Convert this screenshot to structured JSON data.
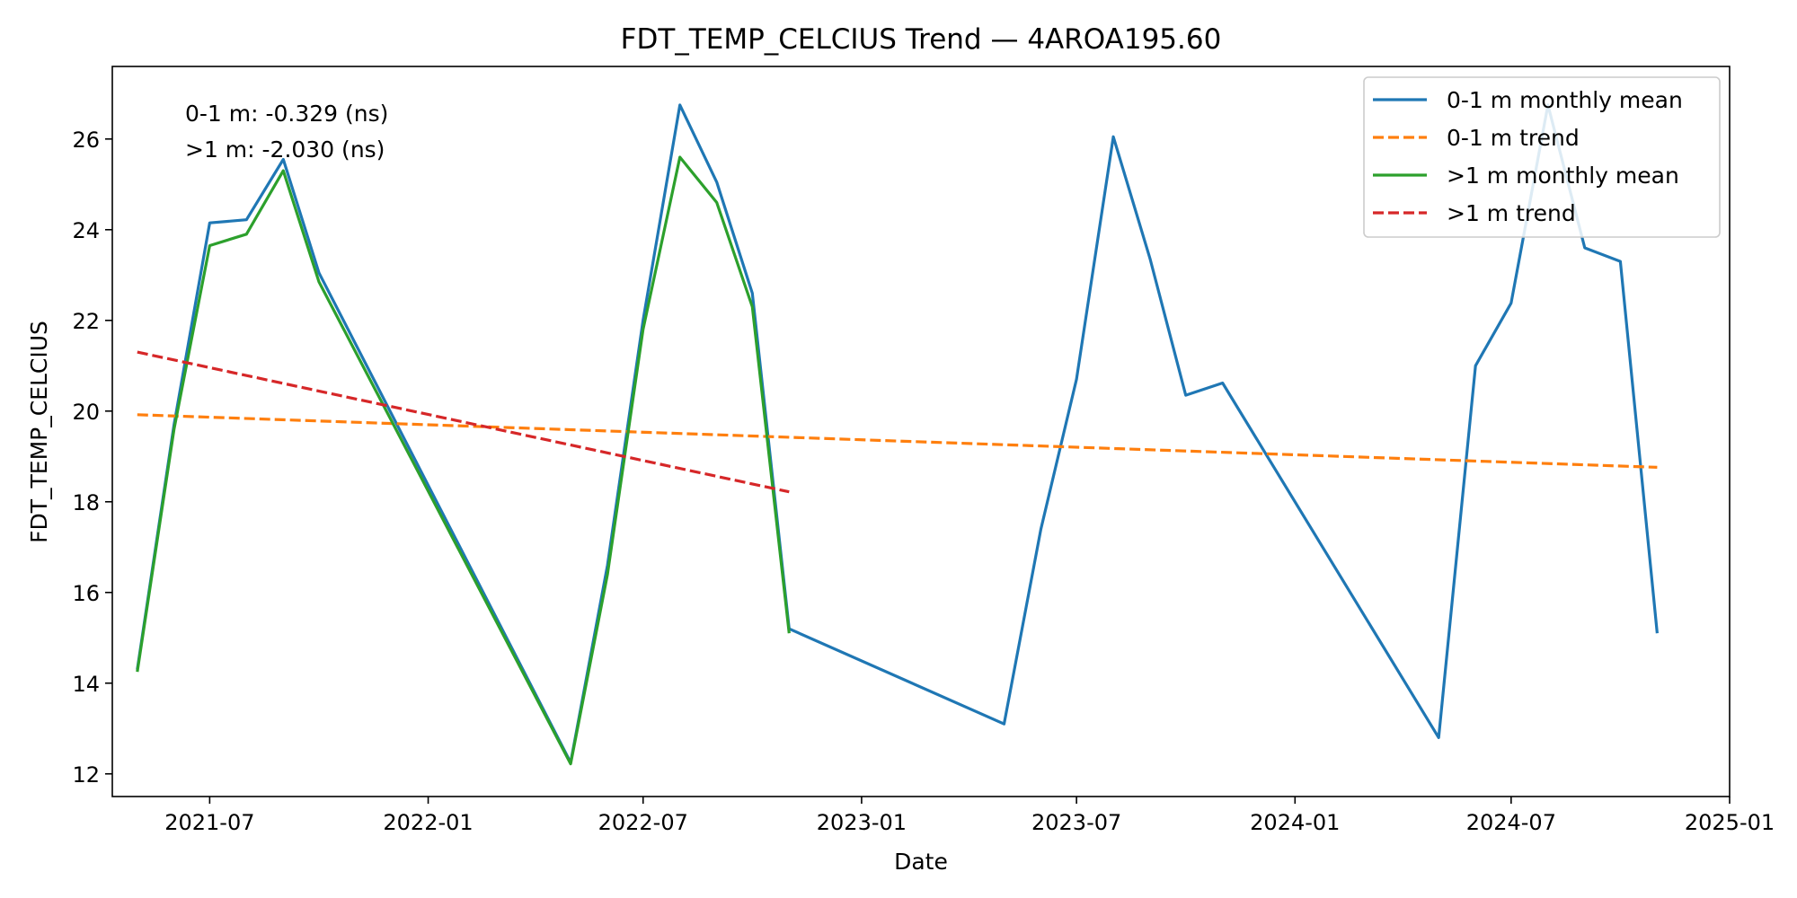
{
  "chart_data": {
    "type": "line",
    "title": "FDT_TEMP_CELCIUS Trend — 4AROA195.60",
    "xlabel": "Date",
    "ylabel": "FDT_TEMP_CELCIUS",
    "xlim": [
      "2021-04-10",
      "2025-01-01"
    ],
    "ylim": [
      11.5,
      27.6
    ],
    "x_tick_labels": [
      "2021-07",
      "2022-01",
      "2022-07",
      "2023-01",
      "2023-07",
      "2024-01",
      "2024-07",
      "2025-01"
    ],
    "y_tick_labels": [
      "12",
      "14",
      "16",
      "18",
      "20",
      "22",
      "24",
      "26"
    ],
    "grid": false,
    "legend_position": "top-right",
    "annotations": [
      "0-1 m: -0.329 (ns)",
      ">1 m: -2.030 (ns)"
    ],
    "series": [
      {
        "name": "0-1 m monthly mean",
        "color": "#1f77b4",
        "style": "solid",
        "points": [
          [
            "2021-05-01",
            14.3
          ],
          [
            "2021-06-01",
            19.7
          ],
          [
            "2021-07-01",
            24.15
          ],
          [
            "2021-08-01",
            24.22
          ],
          [
            "2021-09-01",
            25.55
          ],
          [
            "2021-10-01",
            23.05
          ],
          [
            "2022-05-01",
            12.25
          ],
          [
            "2022-06-01",
            16.6
          ],
          [
            "2022-07-01",
            22.0
          ],
          [
            "2022-08-01",
            26.75
          ],
          [
            "2022-09-01",
            25.05
          ],
          [
            "2022-10-01",
            22.6
          ],
          [
            "2022-11-01",
            15.2
          ],
          [
            "2023-05-01",
            13.1
          ],
          [
            "2023-06-01",
            17.4
          ],
          [
            "2023-07-01",
            20.7
          ],
          [
            "2023-08-01",
            26.05
          ],
          [
            "2023-09-01",
            23.35
          ],
          [
            "2023-10-01",
            20.35
          ],
          [
            "2023-11-01",
            20.62
          ],
          [
            "2024-05-01",
            12.8
          ],
          [
            "2024-06-01",
            21.0
          ],
          [
            "2024-07-01",
            22.38
          ],
          [
            "2024-08-01",
            26.75
          ],
          [
            "2024-09-01",
            23.6
          ],
          [
            "2024-10-01",
            23.3
          ],
          [
            "2024-11-01",
            15.1
          ]
        ]
      },
      {
        "name": "0-1 m trend",
        "color": "#ff7f0e",
        "style": "dashed",
        "points": [
          [
            "2021-05-01",
            19.92
          ],
          [
            "2024-11-01",
            18.76
          ]
        ]
      },
      {
        "name": ">1 m monthly mean",
        "color": "#2ca02c",
        "style": "solid",
        "points": [
          [
            "2021-05-01",
            14.25
          ],
          [
            "2021-06-01",
            19.6
          ],
          [
            "2021-07-01",
            23.65
          ],
          [
            "2021-08-01",
            23.9
          ],
          [
            "2021-09-01",
            25.3
          ],
          [
            "2021-10-01",
            22.85
          ],
          [
            "2022-05-01",
            12.22
          ],
          [
            "2022-06-01",
            16.4
          ],
          [
            "2022-07-01",
            21.8
          ],
          [
            "2022-08-01",
            25.6
          ],
          [
            "2022-09-01",
            24.6
          ],
          [
            "2022-10-01",
            22.3
          ],
          [
            "2022-11-01",
            15.1
          ]
        ]
      },
      {
        "name": ">1 m trend",
        "color": "#d62728",
        "style": "dashed",
        "points": [
          [
            "2021-05-01",
            21.3
          ],
          [
            "2022-11-01",
            18.22
          ]
        ]
      }
    ]
  }
}
